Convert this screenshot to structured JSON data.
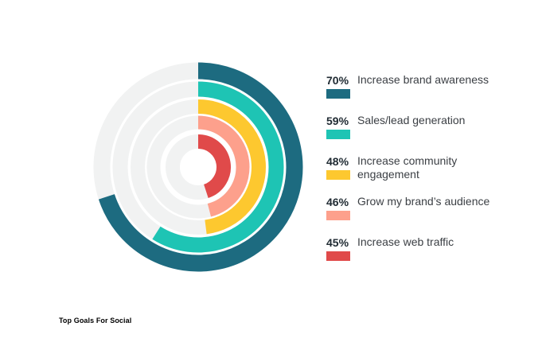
{
  "chart_data": {
    "type": "radial-bar",
    "caption": "Top Goals For Social",
    "max_value": 100,
    "track_color": "#f1f2f2",
    "series": [
      {
        "name": "Increase brand awareness",
        "value": 70,
        "value_label": "70%",
        "color": "#1d6b80"
      },
      {
        "name": "Sales/lead generation",
        "value": 59,
        "value_label": "59%",
        "color": "#1ec4b4"
      },
      {
        "name": "Increase community engagement",
        "value": 48,
        "value_label": "48%",
        "color": "#fdc82f"
      },
      {
        "name": "Grow my brand’s audience",
        "value": 46,
        "value_label": "46%",
        "color": "#fda08c"
      },
      {
        "name": "Increase web traffic",
        "value": 45,
        "value_label": "45%",
        "color": "#e04a4a"
      }
    ]
  }
}
